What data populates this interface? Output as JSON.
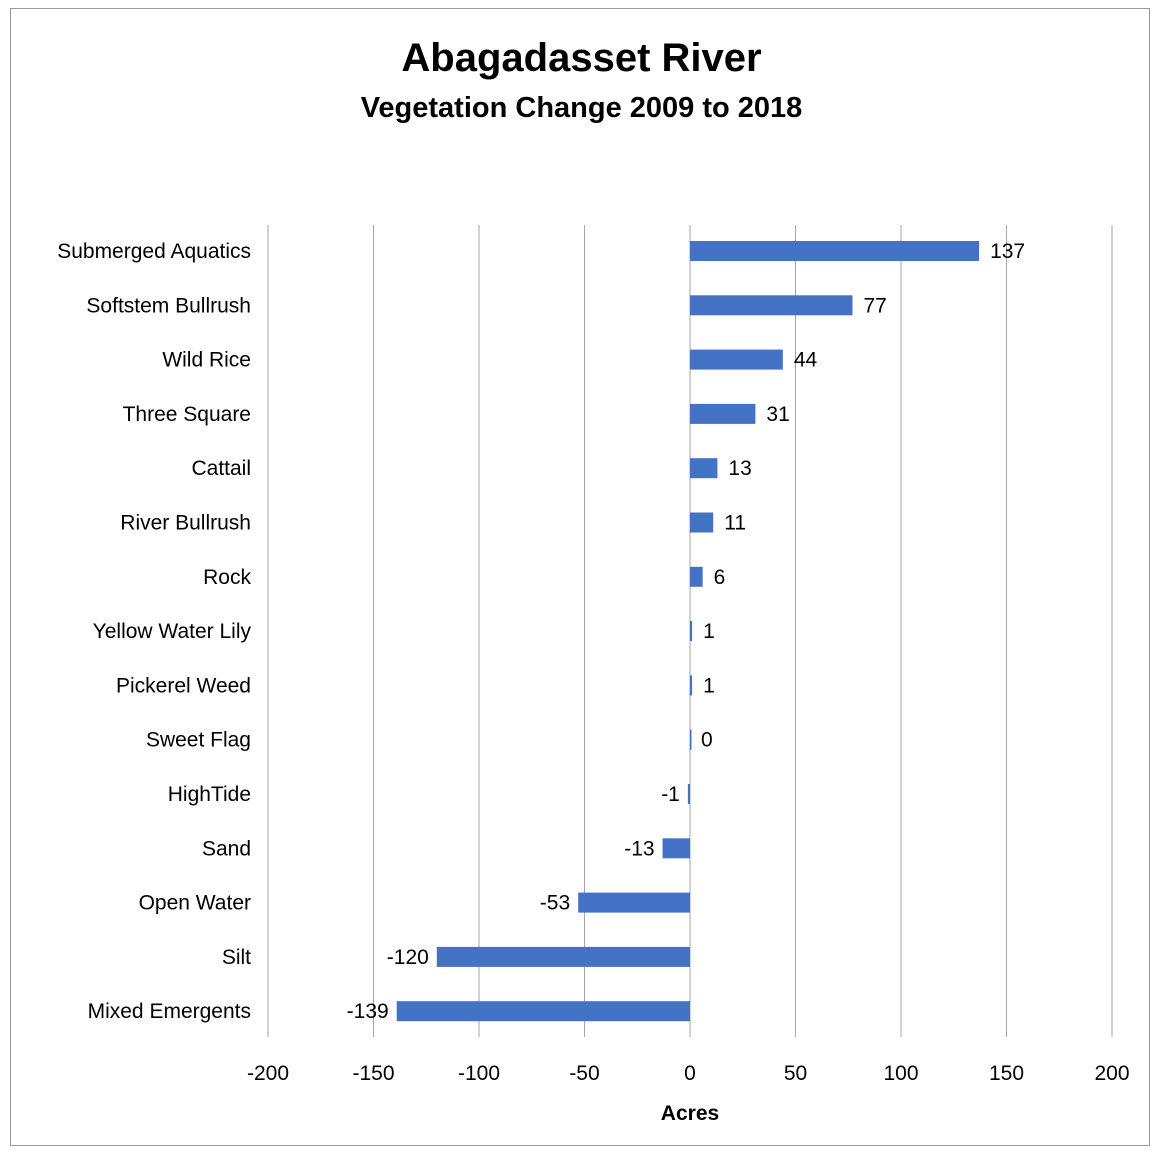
{
  "chart_data": {
    "type": "bar",
    "orientation": "horizontal",
    "title": "Abagadasset River",
    "subtitle": "Vegetation Change 2009 to 2018",
    "xlabel": "Acres",
    "ylabel": "",
    "xlim": [
      -200,
      200
    ],
    "xticks": [
      -200,
      -150,
      -100,
      -50,
      0,
      50,
      100,
      150,
      200
    ],
    "xtick_labels": [
      "-200",
      "-150",
      "-100",
      "-50",
      "0",
      "50",
      "100",
      "150",
      "200"
    ],
    "grid": "vertical major gridlines",
    "legend": "none",
    "categories": [
      "Submerged Aquatics",
      "Softstem Bullrush",
      "Wild Rice",
      "Three Square",
      "Cattail",
      "River Bullrush",
      "Rock",
      "Yellow Water Lily",
      "Pickerel Weed",
      "Sweet Flag",
      "HighTide",
      "Sand",
      "Open Water",
      "Silt",
      "Mixed Emergents"
    ],
    "values": [
      137,
      77,
      44,
      31,
      13,
      11,
      6,
      1,
      1,
      0,
      -1,
      -13,
      -53,
      -120,
      -139
    ],
    "data_labels": [
      "137",
      "77",
      "44",
      "31",
      "13",
      "11",
      "6",
      "1",
      "1",
      "0",
      "-1",
      "-13",
      "-53",
      "-120",
      "-139"
    ],
    "bar_color": "#4472C4"
  }
}
